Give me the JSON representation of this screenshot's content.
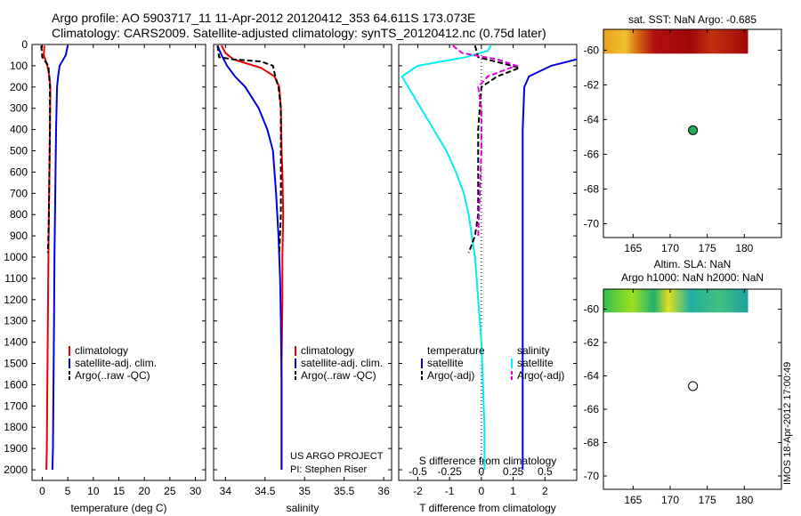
{
  "titles": {
    "line1": "Argo profile: AO 5903717_11 11-Apr-2012 20120412_353 64.611S 173.073E",
    "line2": "Climatology: CARS2009. Satellite-adjusted climatology: synTS_20120412.nc (0.75d later)"
  },
  "colors": {
    "climatology": "#ee0000",
    "satellite": "#0000dd",
    "argo": "#000000",
    "sat_salinity": "#00eeee",
    "argo_salinity": "#dd00dd",
    "float_marker": "#22aa55"
  },
  "watermark": "IMOS 18-Apr-2012 17:00:49",
  "credits": [
    "US ARGO PROJECT",
    "PI: Stephen Riser"
  ],
  "chart_data": [
    {
      "type": "line",
      "xlabel": "temperature (deg C)",
      "ylabel": "",
      "xlim": [
        -2,
        32
      ],
      "ylim": [
        2050,
        0
      ],
      "xticks": [
        0,
        5,
        10,
        15,
        20,
        25,
        30
      ],
      "yticks": [
        0,
        100,
        200,
        300,
        400,
        500,
        600,
        700,
        800,
        900,
        1000,
        1100,
        1200,
        1300,
        1400,
        1500,
        1600,
        1700,
        1800,
        1900,
        2000
      ],
      "legend": [
        "climatology",
        "satellite-adj. clim.",
        "Argo(..raw -QC)"
      ],
      "series": [
        {
          "name": "climatology",
          "color": "red",
          "dash": false,
          "x": [
            0.4,
            0.3,
            1.0,
            1.4,
            1.6,
            1.5,
            1.4,
            1.3,
            1.2,
            1.1,
            1.0,
            0.9,
            0.8
          ],
          "y": [
            5,
            50,
            100,
            150,
            200,
            400,
            600,
            800,
            1000,
            1300,
            1600,
            1900,
            2000
          ]
        },
        {
          "name": "satellite-adj. clim.",
          "color": "blue",
          "dash": false,
          "x": [
            5.0,
            4.6,
            3.4,
            3.1,
            2.9,
            2.7,
            2.6,
            2.5,
            2.4,
            2.3,
            2.2,
            2.1,
            2.0
          ],
          "y": [
            5,
            50,
            100,
            150,
            200,
            400,
            600,
            800,
            1000,
            1300,
            1600,
            1900,
            2000
          ]
        },
        {
          "name": "Argo(..raw -QC)",
          "color": "black",
          "dash": true,
          "x": [
            -0.2,
            -0.1,
            0.0,
            0.6,
            1.2,
            1.5,
            1.5,
            1.4,
            1.3,
            1.2,
            1.1
          ],
          "y": [
            5,
            30,
            60,
            80,
            100,
            200,
            400,
            600,
            800,
            900,
            980
          ]
        }
      ]
    },
    {
      "type": "line",
      "xlabel": "salinity",
      "xlim": [
        33.85,
        36.1
      ],
      "ylim": [
        2050,
        0
      ],
      "xticks": [
        34,
        34.5,
        35,
        35.5,
        36
      ],
      "legend": [
        "climatology",
        "satellite-adj. clim.",
        "Argo(..raw -QC)"
      ],
      "series": [
        {
          "name": "climatology",
          "color": "red",
          "dash": false,
          "x": [
            33.95,
            34.0,
            34.1,
            34.45,
            34.62,
            34.68,
            34.7,
            34.71,
            34.72,
            34.73,
            34.72,
            34.72,
            34.71,
            34.71,
            34.71
          ],
          "y": [
            5,
            40,
            70,
            110,
            150,
            200,
            300,
            500,
            600,
            800,
            1000,
            1200,
            1500,
            1800,
            2000
          ]
        },
        {
          "name": "satellite-adj. clim.",
          "color": "blue",
          "dash": false,
          "x": [
            33.9,
            33.95,
            34.02,
            34.12,
            34.25,
            34.42,
            34.53,
            34.6,
            34.64,
            34.67,
            34.69,
            34.7,
            34.71,
            34.71
          ],
          "y": [
            5,
            50,
            100,
            150,
            200,
            300,
            400,
            500,
            700,
            900,
            1100,
            1300,
            1600,
            2000
          ]
        },
        {
          "name": "Argo(..raw -QC)",
          "color": "black",
          "dash": true,
          "x": [
            33.9,
            33.92,
            34.1,
            34.45,
            34.6,
            34.63,
            34.67,
            34.7,
            34.7,
            34.7,
            34.68
          ],
          "y": [
            5,
            60,
            70,
            80,
            100,
            150,
            200,
            300,
            500,
            800,
            980
          ]
        }
      ]
    },
    {
      "type": "line",
      "xlabel": "T difference from climatology",
      "x2label": "S difference from climatology",
      "xlim": [
        -2.6,
        3.0
      ],
      "ylim": [
        2050,
        0
      ],
      "xticks": [
        -2,
        -1,
        0,
        1,
        2
      ],
      "x2ticks": [
        -0.5,
        -0.25,
        0,
        0.25,
        0.5
      ],
      "legend_temperature": [
        "temperature",
        "satellite",
        "Argo(-adj)"
      ],
      "legend_salinity": [
        "salinity",
        "satellite",
        "Argo(-adj)"
      ],
      "series": [
        {
          "name": "satellite",
          "color": "cyan",
          "dash": false,
          "x": [
            0.3,
            0.2,
            -0.5,
            -2.0,
            -2.5,
            -2.3,
            -1.9,
            -1.5,
            -1.1,
            -0.8,
            -0.55,
            -0.4,
            -0.3,
            -0.2,
            -0.1,
            0.0,
            0.05,
            0.1,
            0.1
          ],
          "y": [
            5,
            30,
            60,
            100,
            150,
            200,
            300,
            400,
            500,
            600,
            700,
            800,
            900,
            1000,
            1200,
            1400,
            1600,
            1800,
            2000
          ]
        },
        {
          "name": "satellite",
          "color": "blue",
          "dash": false,
          "x": [
            3.0,
            2.2,
            1.5,
            1.35,
            1.3,
            1.3,
            1.3,
            1.3,
            1.3,
            1.3,
            1.3,
            1.3
          ],
          "y": [
            70,
            100,
            150,
            200,
            400,
            600,
            800,
            1000,
            1300,
            1600,
            1800,
            2000
          ]
        },
        {
          "name": "Argo(-adj)",
          "color": "black",
          "dash": true,
          "x": [
            -0.2,
            -0.1,
            0.7,
            1.2,
            0.5,
            0.0,
            -0.1,
            -0.1,
            -0.1,
            -0.2,
            -0.4
          ],
          "y": [
            5,
            60,
            90,
            110,
            150,
            200,
            400,
            600,
            800,
            900,
            980
          ]
        },
        {
          "name": "Argo(-adj)",
          "color": "magenta",
          "dash": true,
          "x": [
            -0.9,
            -0.6,
            0.5,
            1.1,
            0.2,
            -0.1,
            0.0,
            0.0,
            -0.05,
            -0.1
          ],
          "y": [
            5,
            40,
            70,
            100,
            150,
            200,
            300,
            500,
            700,
            900
          ]
        }
      ]
    },
    {
      "type": "heatmap",
      "title": "sat. SST: NaN Argo: -0.685",
      "xlim": [
        161,
        185
      ],
      "ylim": [
        -70.8,
        -58.8
      ],
      "xticks": [
        165,
        170,
        175,
        180
      ],
      "yticks": [
        -70,
        -68,
        -66,
        -64,
        -62,
        -60
      ],
      "float_position": {
        "lon": 173.073,
        "lat": -64.611
      }
    },
    {
      "type": "heatmap",
      "title": "Altim. SLA: NaN",
      "subtitle": "Argo h1000: NaN h2000: NaN",
      "xlim": [
        161,
        185
      ],
      "ylim": [
        -70.8,
        -58.8
      ],
      "xticks": [
        165,
        170,
        175,
        180
      ],
      "yticks": [
        -70,
        -68,
        -66,
        -64,
        -62,
        -60
      ],
      "float_position": {
        "lon": 173.073,
        "lat": -64.611
      }
    }
  ]
}
